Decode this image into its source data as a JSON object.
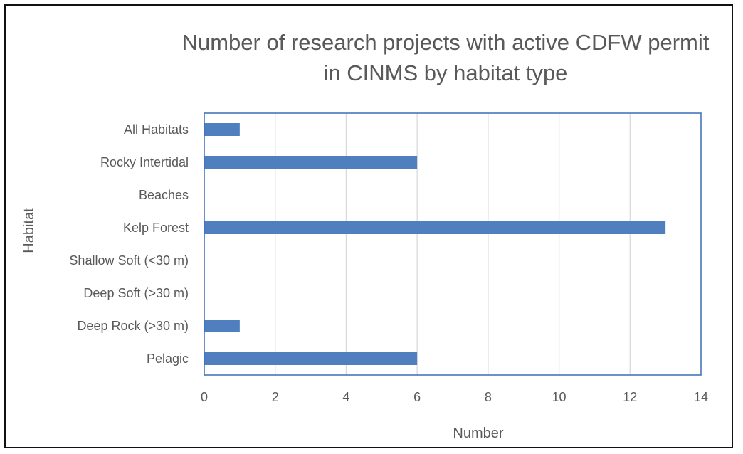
{
  "chart_data": {
    "type": "bar",
    "orientation": "horizontal",
    "title": "Number of research projects with active CDFW permit in CINMS by habitat type",
    "title_lines": [
      "Number of research projects with active CDFW permit",
      "in CINMS by habitat type"
    ],
    "xlabel": "Number",
    "ylabel": "Habitat",
    "categories": [
      "All Habitats",
      "Rocky Intertidal",
      "Beaches",
      "Kelp Forest",
      "Shallow Soft (<30 m)",
      "Deep Soft (>30 m)",
      "Deep Rock (>30 m)",
      "Pelagic"
    ],
    "values": [
      1,
      6,
      0,
      13,
      0,
      0,
      1,
      6
    ],
    "xlim": [
      0,
      14
    ],
    "xticks": [
      0,
      2,
      4,
      6,
      8,
      10,
      12,
      14
    ],
    "grid": "vertical",
    "legend": "none",
    "colors": {
      "bar": "#4f7fbf",
      "plot_border": "#3a6eb5",
      "grid": "#d9d9d9",
      "text": "#595959",
      "frame": "#111111"
    }
  }
}
